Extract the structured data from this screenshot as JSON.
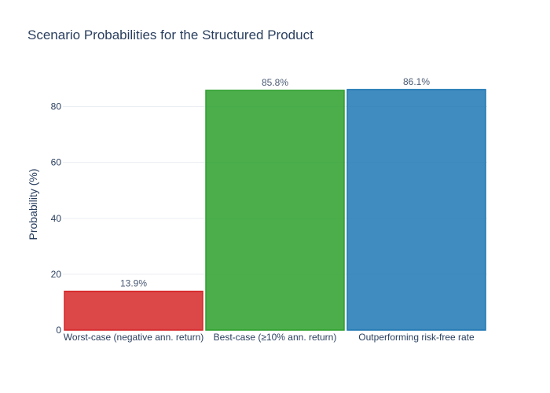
{
  "chart_data": {
    "type": "bar",
    "title": "Scenario Probabilities for the Structured Product",
    "xlabel": "",
    "ylabel": "Probability (%)",
    "ylim": [
      0,
      90
    ],
    "yticks": [
      0,
      20,
      40,
      60,
      80
    ],
    "grid": true,
    "categories": [
      "Worst-case (negative ann. return)",
      "Best-case (≥10% ann. return)",
      "Outperforming risk-free rate"
    ],
    "values": [
      13.9,
      85.8,
      86.1
    ],
    "data_labels": [
      "13.9%",
      "85.8%",
      "86.1%"
    ],
    "colors": [
      "#d62728",
      "#2ca02c",
      "#1f77b4"
    ]
  }
}
